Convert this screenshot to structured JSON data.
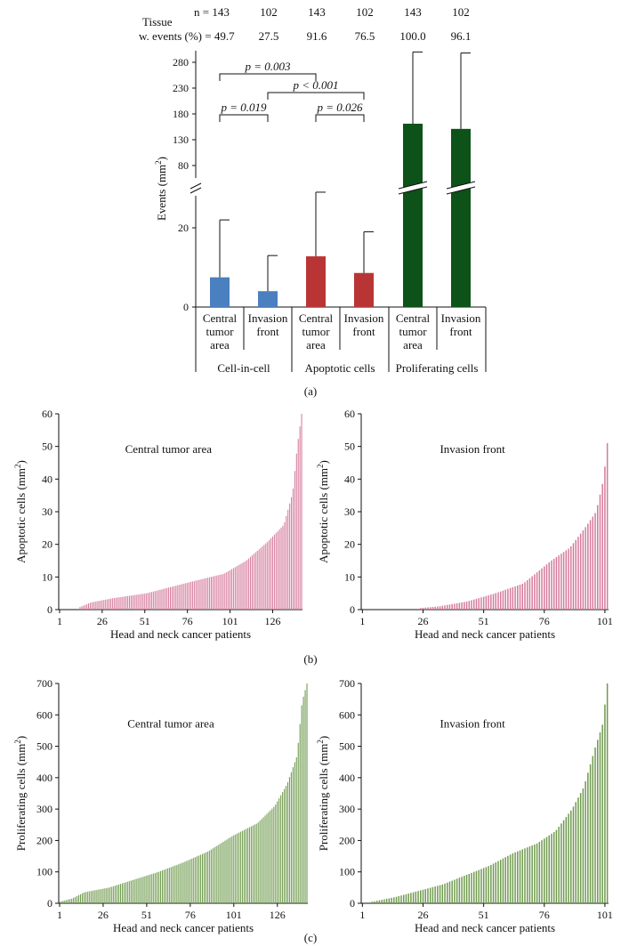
{
  "colors": {
    "cell_in_cell": "#4a7fc0",
    "apoptotic": "#b93535",
    "proliferating": "#0d5218",
    "apoptotic_dist": "#d57a9b",
    "proliferating_dist": "#6f9a4e",
    "axis": "#111111"
  },
  "chart_data": [
    {
      "type": "bar",
      "panel_label": "(a)",
      "header": {
        "tissue_label": "Tissue",
        "n_label": "n = 143",
        "w_events_label": "w. events (%) = 49.7",
        "n_values": [
          "102",
          "143",
          "102",
          "143",
          "102"
        ],
        "pct_values": [
          "27.5",
          "91.6",
          "76.5",
          "100.0",
          "96.1"
        ]
      },
      "ylabel": "Events (mm2)",
      "y_ticks_lower": [
        0,
        20
      ],
      "y_ticks_upper": [
        80,
        130,
        180,
        230,
        280
      ],
      "categories": [
        "Central tumor area",
        "Invasion front",
        "Central tumor area",
        "Invasion front",
        "Central tumor area",
        "Invasion front"
      ],
      "category_lines": [
        [
          "Central",
          "tumor",
          "area"
        ],
        [
          "Invasion",
          "front"
        ],
        [
          "Central",
          "tumor",
          "area"
        ],
        [
          "Invasion",
          "front"
        ],
        [
          "Central",
          "tumor",
          "area"
        ],
        [
          "Invasion",
          "front"
        ]
      ],
      "groups": [
        "Cell-in-cell",
        "Apoptotic cells",
        "Proliferating cells"
      ],
      "values": [
        7.5,
        4.0,
        12.8,
        8.6,
        161,
        151
      ],
      "error_upper": [
        22,
        13,
        29,
        19,
        300,
        298
      ],
      "p_values": [
        {
          "label": "p = 0.003",
          "from": 0,
          "to": 2
        },
        {
          "label": "p < 0.001",
          "from": 1,
          "to": 3
        },
        {
          "label": "p = 0.019",
          "from": 0,
          "to": 1
        },
        {
          "label": "p = 0.026",
          "from": 2,
          "to": 3
        }
      ]
    },
    {
      "type": "bar",
      "panel_label": "(b)",
      "title": "Central tumor area",
      "xlabel": "Head and neck cancer patients",
      "ylabel": "Apoptotic cells (mm2)",
      "ylim": [
        0,
        60
      ],
      "y_ticks": [
        0,
        10,
        20,
        30,
        40,
        50,
        60
      ],
      "x_ticks": [
        "1",
        "26",
        "51",
        "76",
        "101",
        "126"
      ],
      "n": 143,
      "zeros": 12,
      "distribution_anchors": [
        [
          0,
          0.8
        ],
        [
          0.05,
          2.2
        ],
        [
          0.15,
          3.5
        ],
        [
          0.3,
          5
        ],
        [
          0.5,
          8.5
        ],
        [
          0.65,
          11
        ],
        [
          0.75,
          15
        ],
        [
          0.85,
          21
        ],
        [
          0.92,
          26
        ],
        [
          0.96,
          36
        ],
        [
          0.98,
          50
        ],
        [
          1.0,
          60
        ]
      ]
    },
    {
      "type": "bar",
      "title": "Invasion front",
      "xlabel": "Head and neck cancer patients",
      "ylabel": "Apoptotic cells (mm2)",
      "ylim": [
        0,
        60
      ],
      "y_ticks": [
        0,
        10,
        20,
        30,
        40,
        50,
        60
      ],
      "x_ticks": [
        "1",
        "26",
        "51",
        "76",
        "101"
      ],
      "n": 102,
      "zeros": 24,
      "distribution_anchors": [
        [
          0,
          0.5
        ],
        [
          0.1,
          1
        ],
        [
          0.25,
          2.5
        ],
        [
          0.4,
          5
        ],
        [
          0.55,
          8
        ],
        [
          0.7,
          15
        ],
        [
          0.8,
          19
        ],
        [
          0.88,
          25
        ],
        [
          0.94,
          30
        ],
        [
          0.98,
          40
        ],
        [
          1.0,
          51
        ]
      ]
    },
    {
      "type": "bar",
      "panel_label": "(c)",
      "title": "Central tumor area",
      "xlabel": "Head and neck cancer patients",
      "ylabel": "Proliferating cells (mm2)",
      "ylim": [
        0,
        700
      ],
      "y_ticks": [
        0,
        100,
        200,
        300,
        400,
        500,
        600,
        700
      ],
      "x_ticks": [
        "1",
        "26",
        "51",
        "76",
        "101",
        "126"
      ],
      "n": 143,
      "zeros": 0,
      "distribution_anchors": [
        [
          0,
          5
        ],
        [
          0.05,
          15
        ],
        [
          0.1,
          35
        ],
        [
          0.2,
          50
        ],
        [
          0.3,
          75
        ],
        [
          0.4,
          100
        ],
        [
          0.5,
          130
        ],
        [
          0.6,
          165
        ],
        [
          0.7,
          215
        ],
        [
          0.8,
          255
        ],
        [
          0.87,
          310
        ],
        [
          0.92,
          380
        ],
        [
          0.96,
          470
        ],
        [
          0.98,
          640
        ],
        [
          1.0,
          700
        ]
      ]
    },
    {
      "type": "bar",
      "title": "Invasion front",
      "xlabel": "Head and neck cancer patients",
      "ylabel": "Proliferating cells (mm2)",
      "ylim": [
        0,
        700
      ],
      "y_ticks": [
        0,
        100,
        200,
        300,
        400,
        500,
        600,
        700
      ],
      "x_ticks": [
        "1",
        "26",
        "51",
        "76",
        "101"
      ],
      "n": 102,
      "zeros": 4,
      "distribution_anchors": [
        [
          0,
          5
        ],
        [
          0.1,
          20
        ],
        [
          0.2,
          40
        ],
        [
          0.3,
          60
        ],
        [
          0.4,
          90
        ],
        [
          0.5,
          120
        ],
        [
          0.6,
          160
        ],
        [
          0.7,
          190
        ],
        [
          0.78,
          230
        ],
        [
          0.85,
          300
        ],
        [
          0.9,
          370
        ],
        [
          0.95,
          500
        ],
        [
          0.98,
          570
        ],
        [
          1.0,
          700
        ]
      ]
    }
  ]
}
